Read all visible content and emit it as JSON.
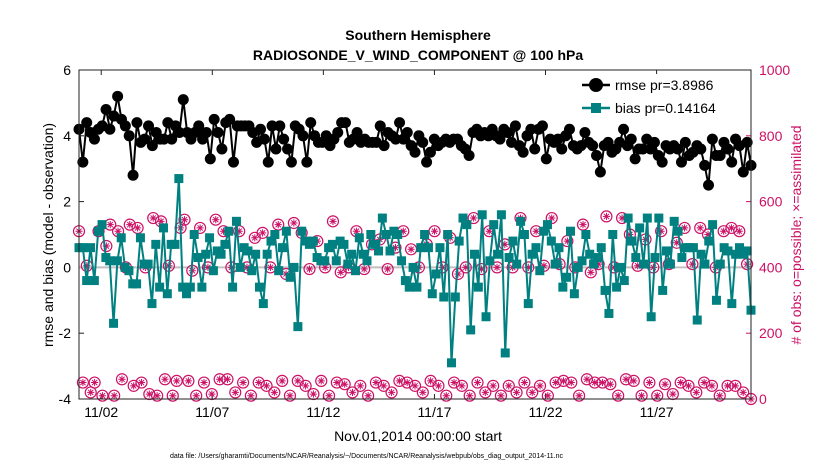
{
  "chart_data": {
    "type": "line",
    "title": "Southern Hemisphere",
    "subtitle": "RADIOSONDE_V_WIND_COMPONENT @ 100 hPa",
    "xlabel": "Nov.01,2014 00:00:00 start",
    "ylabel": "rmse and bias (model - observation)",
    "y2label": "# of obs: o=possible; ×=assimilated",
    "ylim": [
      -4,
      6
    ],
    "y2lim": [
      0,
      1000
    ],
    "xlim": [
      0,
      30.25
    ],
    "yticks": [
      -4,
      -2,
      0,
      2,
      4,
      6
    ],
    "y2ticks": [
      0,
      200,
      400,
      600,
      800,
      1000
    ],
    "xticks": [
      {
        "day": 1,
        "label": "11/02"
      },
      {
        "day": 6,
        "label": "11/07"
      },
      {
        "day": 11,
        "label": "11/12"
      },
      {
        "day": 16,
        "label": "11/17"
      },
      {
        "day": 21,
        "label": "11/22"
      },
      {
        "day": 26,
        "label": "11/27"
      }
    ],
    "legend": {
      "position": "top-right",
      "entries": [
        "rmse pr=3.8986",
        "bias pr=0.14164"
      ]
    },
    "footnote": "data file: /Users/gharamti/Documents/NCAR/Reanalysis/~/Documents/NCAR/Reanalysis/webpub/obs_diag_output_2014-11.nc",
    "colors": {
      "rmse": "#000000",
      "bias": "#008080",
      "obs": "#cc1166",
      "zero_line": "#c0c0c0"
    },
    "series": [
      {
        "name": "rmse",
        "values": [
          4.2,
          3.2,
          4.4,
          4.1,
          3.9,
          4.2,
          4.3,
          4.8,
          4.2,
          4.6,
          5.2,
          4.5,
          4.3,
          4.0,
          2.8,
          4.4,
          3.8,
          3.9,
          4.3,
          3.7,
          4.1,
          3.9,
          3.9,
          4.4,
          3.9,
          4.3,
          4.1,
          5.1,
          4.1,
          3.9,
          4.1,
          4.3,
          3.9,
          4.1,
          3.3,
          4.5,
          4.1,
          3.6,
          4.4,
          4.5,
          3.2,
          4.3,
          4.3,
          4.3,
          4.3,
          4.1,
          3.8,
          4.2,
          3.9,
          3.2,
          4.3,
          3.6,
          4.3,
          3.9,
          3.6,
          3.2,
          4.3,
          4.2,
          4.0,
          3.2,
          4.4,
          4.0,
          3.8,
          3.8,
          4.0,
          3.7,
          3.9,
          4.1,
          4.4,
          4.4,
          3.8,
          3.9,
          4.1,
          3.8,
          3.9,
          3.8,
          3.8,
          3.8,
          4.3,
          3.7,
          4.1,
          4.0,
          3.9,
          4.4,
          3.9,
          4.1,
          3.7,
          3.5,
          4.0,
          3.8,
          3.2,
          3.5,
          3.9,
          3.7,
          3.8,
          3.9,
          3.8,
          3.9,
          3.9,
          3.7,
          3.6,
          3.4,
          4.1,
          4.2,
          4.0,
          4.1,
          4.0,
          4.2,
          4.0,
          3.9,
          4.2,
          4.1,
          3.8,
          4.3,
          3.7,
          3.5,
          4.0,
          4.2,
          3.6,
          4.2,
          4.3,
          3.3,
          3.9,
          3.8,
          3.9,
          3.6,
          4.0,
          4.2,
          3.7,
          3.6,
          3.7,
          4.1,
          3.8,
          3.7,
          3.4,
          2.9,
          3.7,
          3.8,
          3.5,
          3.6,
          3.8,
          4.2,
          3.7,
          3.9,
          3.3,
          3.6,
          3.6,
          3.9,
          3.6,
          3.8,
          3.4,
          3.2,
          3.7,
          3.6,
          3.7,
          3.6,
          3.2,
          3.8,
          3.4,
          3.5,
          3.7,
          3.6,
          3.1,
          2.5,
          3.9,
          3.4,
          3.4,
          3.8,
          3.6,
          3.2,
          3.9,
          3.7,
          2.9,
          3.8,
          3.1
        ]
      },
      {
        "name": "bias",
        "values": [
          0.6,
          0.6,
          -0.4,
          0.6,
          -0.4,
          1.1,
          1.3,
          0.3,
          0.2,
          -1.7,
          0.2,
          0.9,
          0.0,
          -0.1,
          -0.5,
          -0.5,
          0.9,
          0.1,
          0.1,
          -1.1,
          0.7,
          -0.6,
          1.2,
          -0.8,
          0.7,
          0.7,
          2.7,
          -0.6,
          -0.8,
          -0.6,
          1.0,
          0.3,
          -0.6,
          0.4,
          0.9,
          -0.1,
          0.5,
          0.4,
          0.7,
          1.1,
          -0.6,
          1.4,
          0.0,
          0.6,
          0.5,
          -0.1,
          0.4,
          -0.6,
          -1.1,
          0.4,
          0.8,
          1.0,
          -0.1,
          0.6,
          1.1,
          -0.3,
          0.0,
          -1.8,
          1.1,
          0.8,
          0.7,
          0.8,
          0.3,
          0.2,
          0.2,
          0.6,
          0.7,
          0.2,
          0.8,
          0.7,
          0.1,
          0.4,
          -0.1,
          0.9,
          0.4,
          0.2,
          1.0,
          0.7,
          0.5,
          1.5,
          1.0,
          0.5,
          1.1,
          1.0,
          0.2,
          -0.4,
          -0.6,
          0.0,
          -0.6,
          0.6,
          1.0,
          0.6,
          -0.8,
          -0.2,
          0.6,
          -0.9,
          1.0,
          -2.9,
          -0.9,
          0.8,
          1.5,
          1.3,
          -1.9,
          0.4,
          -0.6,
          1.6,
          -1.5,
          0.2,
          1.3,
          0.4,
          1.6,
          -2.6,
          0.3,
          0.8,
          0.1,
          1.4,
          1.0,
          -1.1,
          0.4,
          0.6,
          -0.1,
          1.1,
          1.3,
          0.8,
          0.1,
          0.6,
          -0.6,
          -0.3,
          1.1,
          -0.8,
          0.0,
          0.2,
          1.0,
          0.4,
          0.1,
          0.3,
          0.6,
          -0.7,
          -1.4,
          1.0,
          -0.6,
          0.0,
          -0.4,
          1.5,
          0.8,
          0.3,
          1.2,
          0.1,
          1.5,
          -1.5,
          0.3,
          1.5,
          -0.7,
          0.5,
          0.1,
          1.4,
          1.1,
          0.3,
          0.6,
          0.6,
          0.6,
          -1.6,
          0.4,
          0.1,
          0.8,
          1.3,
          -1.0,
          0.1,
          0.6,
          0.5,
          -1.1,
          0.4,
          0.6,
          0.4,
          0.5,
          -1.3
        ]
      },
      {
        "name": "obs_possible",
        "axis": "y2",
        "values": [
          510,
          50,
          405,
          20,
          50,
          510,
          10,
          465,
          530,
          10,
          510,
          60,
          400,
          530,
          40,
          520,
          50,
          400,
          15,
          550,
          10,
          540,
          60,
          405,
          10,
          55,
          520,
          545,
          55,
          390,
          10,
          520,
          50,
          400,
          15,
          545,
          60,
          510,
          60,
          400,
          20,
          510,
          50,
          400,
          10,
          490,
          50,
          505,
          40,
          400,
          20,
          530,
          55,
          380,
          10,
          535,
          55,
          505,
          40,
          395,
          15,
          480,
          55,
          400,
          10,
          540,
          50,
          385,
          45,
          400,
          20,
          510,
          40,
          395,
          10,
          470,
          50,
          485,
          40,
          395,
          20,
          460,
          55,
          510,
          50,
          455,
          40,
          400,
          20,
          470,
          55,
          510,
          40,
          400,
          10,
          490,
          50,
          380,
          40,
          400,
          10,
          550,
          50,
          395,
          20,
          510,
          40,
          400,
          10,
          470,
          40,
          400,
          20,
          550,
          50,
          400,
          20,
          510,
          40,
          405,
          10,
          550,
          50,
          410,
          55,
          480,
          50,
          400,
          10,
          530,
          60,
          385,
          50,
          410,
          50,
          555,
          45,
          400,
          10,
          550,
          60,
          500,
          55,
          405,
          10,
          485,
          50,
          400,
          10,
          510,
          45,
          410,
          15,
          475,
          50,
          520,
          40,
          410,
          20,
          520,
          50,
          500,
          40,
          400,
          10,
          510,
          40,
          520,
          40,
          510,
          20,
          410,
          0
        ]
      }
    ]
  }
}
